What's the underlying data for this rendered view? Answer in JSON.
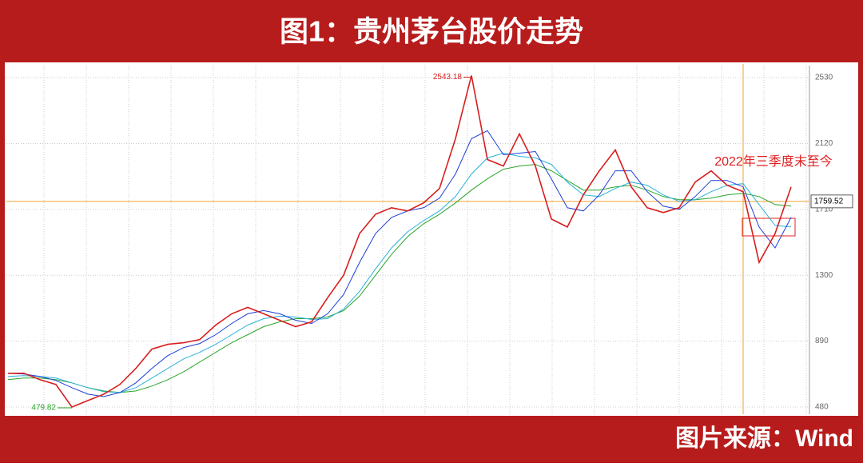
{
  "chart_data": {
    "type": "line",
    "title": "图1：贵州茅台股价走势",
    "source": "图片来源：Wind",
    "categories": [
      null,
      null,
      null,
      null,
      null,
      null,
      null,
      null,
      null,
      null,
      null,
      null,
      null,
      null,
      null,
      null,
      null,
      null,
      null,
      null,
      null,
      null,
      null,
      null,
      null,
      null,
      null,
      null,
      null,
      null,
      null,
      null,
      null,
      null,
      null,
      null,
      null,
      null,
      null,
      null,
      null,
      null,
      null,
      null,
      null,
      null,
      null,
      null,
      null,
      null
    ],
    "series": [
      {
        "color": "#d81e1e",
        "values": [
          690,
          690,
          650,
          620,
          479.82,
          520,
          560,
          620,
          720,
          840,
          870,
          880,
          900,
          990,
          1060,
          1100,
          1060,
          1020,
          980,
          1010,
          1160,
          1300,
          1560,
          1680,
          1720,
          1700,
          1750,
          1840,
          2150,
          2543.18,
          2020,
          1980,
          2180,
          1980,
          1650,
          1600,
          1800,
          1950,
          2080,
          1850,
          1720,
          1690,
          1720,
          1880,
          1950,
          1860,
          1820,
          1380,
          1560,
          1850
        ]
      },
      {
        "color": "#1e3fd8",
        "values": [
          690,
          685,
          670,
          645,
          600,
          560,
          545,
          570,
          630,
          720,
          800,
          850,
          875,
          930,
          1000,
          1060,
          1080,
          1060,
          1020,
          1000,
          1060,
          1180,
          1380,
          1560,
          1660,
          1700,
          1720,
          1780,
          1930,
          2150,
          2200,
          2050,
          2060,
          2070,
          1900,
          1720,
          1700,
          1800,
          1950,
          1950,
          1820,
          1730,
          1710,
          1790,
          1890,
          1890,
          1850,
          1600,
          1470,
          1660
        ]
      },
      {
        "color": "#2bb3d9",
        "values": [
          670,
          675,
          670,
          660,
          630,
          600,
          575,
          570,
          600,
          660,
          720,
          780,
          820,
          870,
          930,
          990,
          1030,
          1045,
          1040,
          1025,
          1030,
          1090,
          1200,
          1340,
          1470,
          1570,
          1640,
          1700,
          1790,
          1930,
          2030,
          2060,
          2040,
          2030,
          1990,
          1880,
          1800,
          1790,
          1840,
          1880,
          1860,
          1800,
          1760,
          1770,
          1820,
          1860,
          1870,
          1740,
          1610,
          1600
        ]
      },
      {
        "color": "#2aa52a",
        "values": [
          650,
          660,
          660,
          650,
          630,
          600,
          580,
          570,
          580,
          610,
          650,
          700,
          760,
          820,
          880,
          930,
          980,
          1010,
          1030,
          1030,
          1040,
          1080,
          1170,
          1300,
          1430,
          1540,
          1620,
          1680,
          1750,
          1830,
          1900,
          1960,
          1980,
          1990,
          1950,
          1890,
          1830,
          1830,
          1850,
          1860,
          1830,
          1790,
          1770,
          1770,
          1780,
          1800,
          1810,
          1790,
          1740,
          1730
        ]
      }
    ],
    "ylim": [
      435,
      2605
    ],
    "yticks": [
      480,
      890,
      1300,
      1710,
      2120,
      2530
    ],
    "grid": true,
    "reference_line": {
      "value": 1759.52,
      "color": "#f0a030"
    },
    "annotation": "2022年三季度末至今"
  }
}
